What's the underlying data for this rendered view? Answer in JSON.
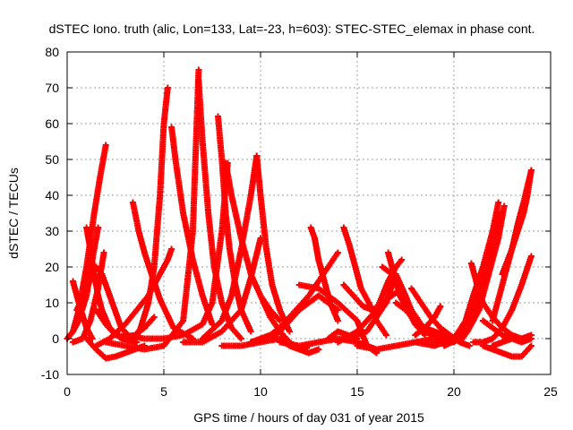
{
  "chart_data": {
    "type": "scatter",
    "title": "dSTEC Iono. truth (alic, Lon=133, Lat=-23, h=603): STEC-STEC_elemax in phase cont.",
    "xlabel": "GPS time / hours of day 031 of year 2015",
    "ylabel": "dSTEC  / TECUs",
    "xlim": [
      0,
      25
    ],
    "ylim": [
      -10,
      80
    ],
    "xticks": [
      0,
      5,
      10,
      15,
      20,
      25
    ],
    "yticks": [
      -10,
      0,
      10,
      20,
      30,
      40,
      50,
      60,
      70,
      80
    ],
    "grid": true,
    "marker": "+",
    "color": "#ff0000",
    "series": [
      {
        "x": [
          0.0,
          0.3,
          0.6,
          1.0,
          1.4,
          1.7,
          2.0
        ],
        "y": [
          0,
          2,
          8,
          20,
          35,
          45,
          54
        ]
      },
      {
        "x": [
          0.3,
          0.6,
          1.0,
          1.3
        ],
        "y": [
          16,
          10,
          3,
          0
        ]
      },
      {
        "x": [
          0.0,
          0.3,
          0.6,
          1.0,
          1.3,
          1.6
        ],
        "y": [
          0,
          2,
          5,
          12,
          22,
          31
        ]
      },
      {
        "x": [
          1.0,
          1.2,
          1.4,
          1.6,
          1.8,
          2.2,
          2.8,
          3.6
        ],
        "y": [
          31,
          25,
          18,
          12,
          8,
          3,
          0,
          -1
        ]
      },
      {
        "x": [
          0.5,
          1.0,
          1.5,
          1.8,
          2.2,
          2.8,
          3.5
        ],
        "y": [
          8,
          14,
          20,
          18,
          12,
          3,
          -1
        ]
      },
      {
        "x": [
          1.0,
          1.5,
          2.0,
          2.5,
          3.0,
          3.5,
          4.0
        ],
        "y": [
          0,
          -3,
          -5.5,
          -5,
          -4,
          -3,
          -2
        ]
      },
      {
        "x": [
          1.5,
          2.0,
          2.5,
          3.0,
          3.5,
          4.0,
          4.5
        ],
        "y": [
          8,
          4,
          1,
          0.5,
          1,
          3,
          6
        ]
      },
      {
        "x": [
          0.3,
          0.8,
          1.2,
          1.6,
          1.9
        ],
        "y": [
          -1,
          0,
          5,
          14,
          24
        ]
      },
      {
        "x": [
          3.4,
          3.7,
          4.0,
          4.3,
          4.8,
          5.5,
          6.5
        ],
        "y": [
          38,
          30,
          24,
          19,
          11,
          3,
          0
        ]
      },
      {
        "x": [
          1.5,
          2.2,
          3.0,
          3.6,
          4.2,
          4.8,
          5.2,
          5.4
        ],
        "y": [
          -2,
          0,
          4,
          8,
          12,
          18,
          22,
          25
        ]
      },
      {
        "x": [
          3.5,
          3.8,
          4.2,
          4.5,
          4.8,
          5.0,
          5.2
        ],
        "y": [
          0,
          3,
          10,
          20,
          40,
          60,
          70
        ]
      },
      {
        "x": [
          5.4,
          5.6,
          6.0,
          6.5,
          7.0,
          7.5
        ],
        "y": [
          59,
          50,
          35,
          22,
          12,
          4
        ]
      },
      {
        "x": [
          2.0,
          3.0,
          4.0,
          5.0,
          6.0,
          6.5,
          6.8
        ],
        "y": [
          -1,
          -2,
          -3,
          -2,
          5,
          30,
          75
        ]
      },
      {
        "x": [
          6.8,
          7.0,
          7.3,
          7.6,
          8.0,
          8.5,
          9.0
        ],
        "y": [
          72,
          55,
          35,
          20,
          10,
          3,
          0
        ]
      },
      {
        "x": [
          7.8,
          8.0,
          8.2,
          8.4,
          8.7,
          9.0,
          9.5
        ],
        "y": [
          62,
          50,
          35,
          25,
          15,
          8,
          2
        ]
      },
      {
        "x": [
          3.0,
          4.0,
          5.0,
          6.0,
          7.0,
          7.5,
          8.0,
          8.3
        ],
        "y": [
          1,
          0,
          0,
          1,
          4,
          10,
          30,
          49
        ]
      },
      {
        "x": [
          8.2,
          8.5,
          9.0,
          9.5,
          10.0,
          10.5,
          11.0
        ],
        "y": [
          49,
          40,
          28,
          18,
          12,
          8,
          5
        ]
      },
      {
        "x": [
          7.0,
          8.0,
          8.5,
          9.0,
          9.5,
          9.8
        ],
        "y": [
          0,
          5,
          12,
          25,
          40,
          51
        ]
      },
      {
        "x": [
          9.8,
          10.0,
          10.3,
          10.6,
          11.0,
          11.5
        ],
        "y": [
          51,
          40,
          25,
          15,
          8,
          2
        ]
      },
      {
        "x": [
          6.0,
          7.0,
          8.0,
          9.0,
          9.5,
          10.0
        ],
        "y": [
          -1,
          -1,
          2,
          8,
          17,
          28
        ]
      },
      {
        "x": [
          8.0,
          9.0,
          10.0,
          11.0,
          11.5,
          12.0,
          12.5
        ],
        "y": [
          -2,
          -2,
          -1,
          0,
          -2,
          -3,
          -2
        ]
      },
      {
        "x": [
          9.5,
          10.0,
          10.5,
          11.0,
          11.5,
          12.0,
          12.5,
          13.0,
          13.5,
          14.0
        ],
        "y": [
          -1,
          0,
          1,
          3,
          6,
          9,
          12,
          16,
          20,
          24
        ]
      },
      {
        "x": [
          10.0,
          10.5,
          11.0,
          11.5,
          12.0,
          12.5,
          13.0
        ],
        "y": [
          12,
          6,
          2,
          -1,
          -3,
          -4,
          -3
        ]
      },
      {
        "x": [
          12.6,
          12.8,
          13.0,
          13.3,
          13.6,
          14.0
        ],
        "y": [
          31,
          28,
          22,
          16,
          10,
          5
        ]
      },
      {
        "x": [
          10.5,
          11.0,
          11.5,
          12.0,
          12.5,
          13.0,
          13.5,
          14.0
        ],
        "y": [
          0,
          2,
          5,
          8,
          10,
          12,
          10,
          8
        ]
      },
      {
        "x": [
          11.0,
          12.0,
          13.0,
          14.0,
          15.0,
          16.0
        ],
        "y": [
          -1,
          -2,
          -1,
          0,
          -1,
          -3
        ]
      },
      {
        "x": [
          12.0,
          13.0,
          14.0,
          15.0,
          15.5,
          16.0
        ],
        "y": [
          15,
          14,
          10,
          5,
          -2,
          -4
        ]
      },
      {
        "x": [
          13.5,
          14.0,
          14.5,
          15.0
        ],
        "y": [
          0,
          2,
          1,
          0
        ]
      },
      {
        "x": [
          14.3,
          14.6,
          14.9,
          15.2,
          15.6,
          16.0,
          16.5
        ],
        "y": [
          31,
          26,
          20,
          14,
          10,
          5,
          1
        ]
      },
      {
        "x": [
          14.3,
          14.8,
          15.3,
          15.8,
          16.3,
          16.8,
          17.3
        ],
        "y": [
          15,
          12,
          9,
          8,
          10,
          12,
          14
        ]
      },
      {
        "x": [
          14.0,
          15.0,
          16.0,
          16.6,
          17.0,
          17.3
        ],
        "y": [
          -1,
          2,
          8,
          16,
          20,
          22
        ]
      },
      {
        "x": [
          16.6,
          16.9,
          17.2,
          17.6,
          18.0,
          18.5
        ],
        "y": [
          24,
          18,
          12,
          8,
          4,
          1
        ]
      },
      {
        "x": [
          14.5,
          15.5,
          16.5,
          17.0,
          17.5,
          18.0
        ],
        "y": [
          0,
          2,
          10,
          18,
          12,
          5
        ]
      },
      {
        "x": [
          16.3,
          16.8,
          17.3,
          17.8,
          18.3,
          18.8,
          19.3
        ],
        "y": [
          20,
          18,
          14,
          8,
          4,
          1,
          0
        ]
      },
      {
        "x": [
          15.0,
          16.0,
          17.0,
          18.0,
          19.0,
          20.0
        ],
        "y": [
          -2,
          -3,
          -2,
          -1,
          0,
          -1
        ]
      },
      {
        "x": [
          17.0,
          17.5,
          18.0,
          18.5,
          19.0,
          19.5,
          20.0
        ],
        "y": [
          10,
          8,
          5,
          3,
          2,
          1,
          0
        ]
      },
      {
        "x": [
          18.0,
          18.5,
          19.0,
          19.3
        ],
        "y": [
          1,
          3,
          6,
          9
        ]
      },
      {
        "x": [
          17.8,
          18.3,
          18.8,
          19.3,
          19.8,
          20.3,
          20.8
        ],
        "y": [
          14,
          10,
          6,
          3,
          1,
          -1,
          -2
        ]
      },
      {
        "x": [
          18.0,
          19.0,
          20.0,
          20.5,
          20.8,
          21.0,
          21.3
        ],
        "y": [
          -1,
          -2,
          0,
          3,
          8,
          12,
          16
        ]
      },
      {
        "x": [
          19.0,
          20.0,
          20.6,
          21.0,
          21.5,
          22.0,
          22.3
        ],
        "y": [
          -1,
          0,
          5,
          12,
          20,
          30,
          38
        ]
      },
      {
        "x": [
          19.5,
          20.3,
          21.0,
          21.5,
          22.0,
          22.4
        ],
        "y": [
          -2,
          0,
          5,
          15,
          25,
          35
        ]
      },
      {
        "x": [
          20.0,
          20.7,
          21.3,
          21.8,
          22.3,
          22.6
        ],
        "y": [
          -1,
          2,
          8,
          18,
          28,
          37
        ]
      },
      {
        "x": [
          20.3,
          20.7,
          21.0,
          21.4,
          21.8,
          22.2
        ],
        "y": [
          -1,
          2,
          8,
          15,
          22,
          30
        ]
      },
      {
        "x": [
          20.9,
          21.2,
          21.5,
          22.0,
          22.5,
          23.0,
          23.5
        ],
        "y": [
          21,
          15,
          10,
          6,
          3,
          1,
          0
        ]
      },
      {
        "x": [
          21.5,
          22.0,
          22.5,
          23.0,
          23.5,
          24.0
        ],
        "y": [
          5,
          3,
          1,
          0,
          -1,
          0
        ]
      },
      {
        "x": [
          21.0,
          21.5,
          22.0,
          22.5,
          23.0,
          23.5,
          24.0
        ],
        "y": [
          -1,
          -1,
          0,
          3,
          8,
          15,
          23
        ]
      },
      {
        "x": [
          21.5,
          22.0,
          22.5,
          23.0,
          23.5,
          24.0
        ],
        "y": [
          -2,
          -3,
          -4,
          -5,
          -5,
          -2
        ]
      },
      {
        "x": [
          22.0,
          22.5,
          23.0,
          23.3,
          23.6,
          24.0
        ],
        "y": [
          5,
          15,
          25,
          32,
          38,
          47
        ]
      },
      {
        "x": [
          22.5,
          23.0,
          23.3,
          23.6,
          23.8,
          24.0
        ],
        "y": [
          18,
          25,
          30,
          35,
          40,
          47
        ]
      },
      {
        "x": [
          22.0,
          22.5,
          23.0,
          23.5,
          24.0
        ],
        "y": [
          -2,
          -1,
          0,
          0,
          1
        ]
      }
    ]
  }
}
